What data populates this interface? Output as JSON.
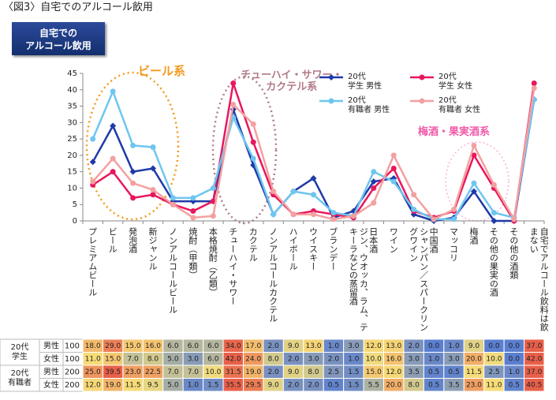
{
  "chart_data": {
    "type": "line",
    "title": "〈図3〉自宅でのアルコール飲用",
    "badge": "自宅での\nアルコール飲用",
    "categories": [
      "プレミアムビール",
      "ビール",
      "発泡酒",
      "新ジャンル",
      "ノンアルコールビール",
      "焼酎（甲類）",
      "本格焼酎（乙類）",
      "チューハイ・サワー",
      "カクテル",
      "ノンアルコールカクテル",
      "ハイボール",
      "ウイスキー",
      "ブランデー",
      "ジン、ウオッカ、ラム、テキーラなどの蒸留酒",
      "日本酒",
      "ワイン",
      "シャンパン／スパークリングワイン",
      "中国酒",
      "マッコリ",
      "梅酒",
      "その他の果実の酒",
      "その他の酒類",
      "自宅でアルコール飲料は飲まない"
    ],
    "ylim": [
      0,
      45
    ],
    "yticks": [
      0,
      5,
      10,
      15,
      20,
      25,
      30,
      35,
      40,
      45
    ],
    "series": [
      {
        "name": "20代\n学生 男性",
        "color": "#1f3aa8",
        "marker": "diamond",
        "values": [
          18,
          29,
          15,
          16,
          6,
          6,
          6,
          34,
          17,
          2,
          9,
          13,
          1,
          3,
          12,
          13,
          2,
          0,
          1,
          9,
          0,
          0,
          37
        ],
        "value_labels": [
          "18.0",
          "29.0",
          "15.0",
          "16.0",
          "6.0",
          "6.0",
          "6.0",
          "34.0",
          "17.0",
          "2.0",
          "9.0",
          "13.0",
          "1.0",
          "3.0",
          "12.0",
          "13.0",
          "2.0",
          "0.0",
          "1.0",
          "9.0",
          "0.0",
          "0.0",
          "37.0"
        ]
      },
      {
        "name": "20代\n学生 女性",
        "color": "#e8175d",
        "marker": "circle",
        "values": [
          11,
          15,
          7,
          8,
          5,
          3,
          6,
          42,
          24,
          8,
          2,
          3,
          2,
          1,
          10,
          16,
          3,
          1,
          3,
          20,
          10,
          0,
          42
        ],
        "value_labels": [
          "11.0",
          "15.0",
          "7.0",
          "8.0",
          "5.0",
          "3.0",
          "6.0",
          "42.0",
          "24.0",
          "8.0",
          "2.0",
          "3.0",
          "2.0",
          "1.0",
          "10.0",
          "16.0",
          "3.0",
          "1.0",
          "3.0",
          "20.0",
          "10.0",
          "0.0",
          "42.0"
        ]
      },
      {
        "name": "20代\n有職者 男性",
        "color": "#6ec6f0",
        "marker": "circle",
        "values": [
          25,
          39.5,
          23,
          22.5,
          7,
          7,
          10,
          31.5,
          19,
          2,
          9,
          8,
          2.5,
          1.5,
          15,
          12,
          3.5,
          0.5,
          0.5,
          11.5,
          2.5,
          1,
          37
        ],
        "value_labels": [
          "25.0",
          "39.5",
          "23.0",
          "22.5",
          "7.0",
          "7.0",
          "10.0",
          "31.5",
          "19.0",
          "2.0",
          "9.0",
          "8.0",
          "2.5",
          "1.5",
          "15.0",
          "12.0",
          "3.5",
          "0.5",
          "0.5",
          "11.5",
          "2.5",
          "1.0",
          "37.0"
        ]
      },
      {
        "name": "20代\n有職者 女性",
        "color": "#f4a0a0",
        "marker": "circle",
        "values": [
          12,
          19,
          11.5,
          9.5,
          5,
          1,
          1.5,
          35.5,
          29.5,
          9,
          2,
          2,
          0.5,
          1.5,
          5.5,
          20,
          8,
          0.5,
          3.5,
          23,
          11,
          0.5,
          40.5
        ],
        "value_labels": [
          "12.0",
          "19.0",
          "11.5",
          "9.5",
          "5.0",
          "1.0",
          "1.5",
          "35.5",
          "29.5",
          "9.0",
          "2.0",
          "2.0",
          "0.5",
          "1.5",
          "5.5",
          "20.0",
          "8.0",
          "0.5",
          "3.5",
          "23.0",
          "11.0",
          "0.5",
          "40.5"
        ]
      }
    ],
    "annotations": [
      {
        "text": "ビール系",
        "color": "#f39a1e"
      },
      {
        "text": "チューハイ・サワー・\nカクテル系",
        "color": "#b07a86"
      },
      {
        "text": "梅酒・果実酒系",
        "color": "#f05aa8"
      }
    ],
    "table": {
      "groups": [
        "20代\n学生",
        "20代\n有職者"
      ],
      "genders": [
        "男性",
        "女性",
        "男性",
        "女性"
      ],
      "n": [
        100,
        100,
        200,
        200
      ]
    }
  }
}
